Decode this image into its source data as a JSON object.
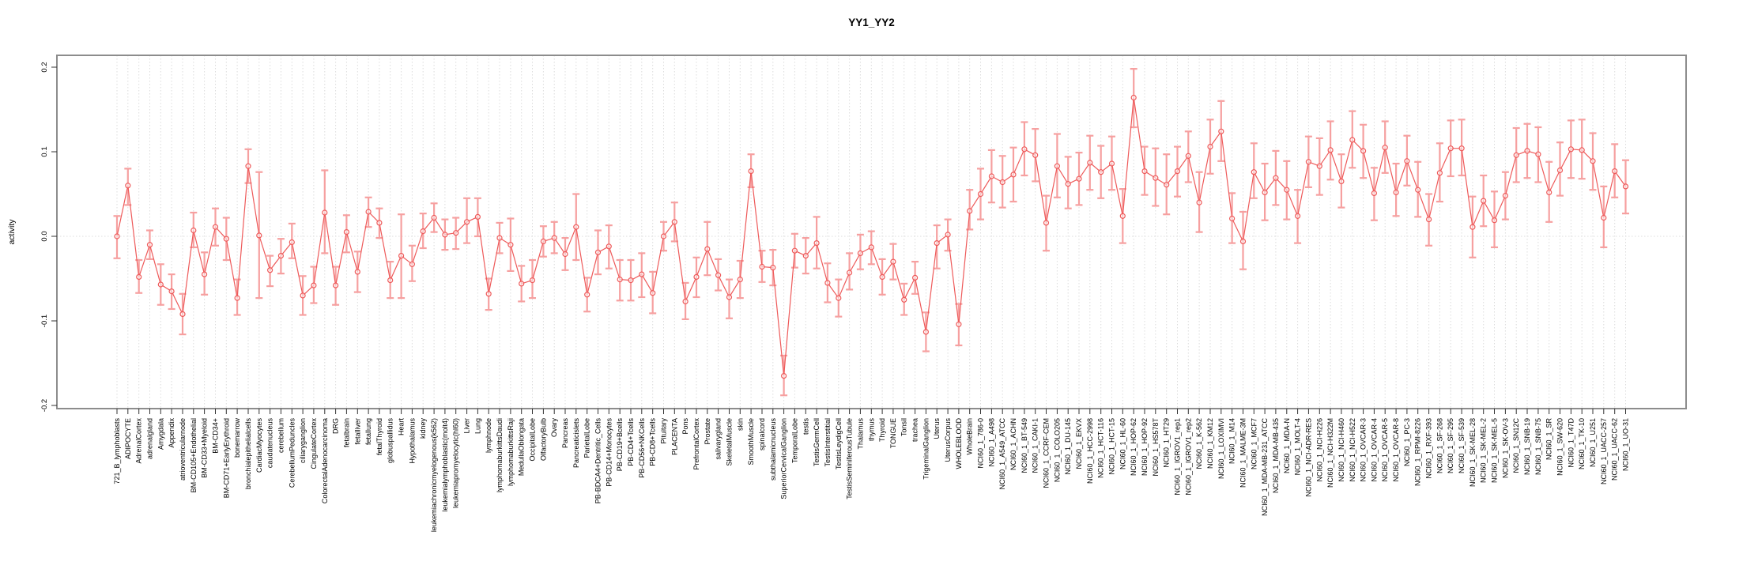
{
  "figure": {
    "title": "YY1_YY2",
    "background": "#ffffff"
  },
  "chart_data": {
    "type": "line",
    "title": "YY1_YY2",
    "xlabel": "",
    "ylabel": "activity",
    "ylim": [
      -0.21,
      0.215
    ],
    "y_ticks": [
      0.2,
      0.1,
      0.0,
      -0.1,
      -0.2
    ],
    "grid": "vertical dotted gridline per category; horizontal dotted line at 0",
    "legend": "none",
    "marker": "open-circle",
    "error_bars": true,
    "series_color": "#ee5a5a",
    "error_bar_color": "#f6a0a0",
    "grid_color": "#dcdcdc",
    "box_color": "#8c8c8c",
    "categories": [
      "721_B_lymphoblasts",
      "ADIPOCYTE",
      "AdrenalCortex",
      "adrenalgland",
      "Amygdala",
      "Appendix",
      "atrioventricularnode",
      "BM-CD105+Endothelial",
      "BM-CD33+Myeloid",
      "BM-CD34+",
      "BM-CD71+EarlyErythroid",
      "bonemarrow",
      "bronchialepithelialcells",
      "CardiacMyocytes",
      "caudatenucleus",
      "cerebellum",
      "CerebellumPeduncles",
      "ciliaryganglion",
      "CingulateCortex",
      "ColorectalAdenocarcinoma",
      "DRG",
      "fetalbrain",
      "fetalliver",
      "fetallung",
      "fetalThyroid",
      "globuspallidus",
      "Heart",
      "Hypothalamus",
      "kidney",
      "leukemiachronicmyelogenous(k562)",
      "leukemialymphoblastic(molt4)",
      "leukemiapromyelocytic(hl60)",
      "Liver",
      "Lung",
      "lymphnode",
      "lymphomaburkittsDaudi",
      "lymphomaburkittsRaji",
      "MedullaOblongata",
      "OccipitalLobe",
      "OlfactoryBulb",
      "Ovary",
      "Pancreas",
      "Pancreaticislets",
      "ParietalLobe",
      "PB-BDCA4+Dentritic_Cells",
      "PB-CD14+Monocytes",
      "PB-CD19+Bcells",
      "PB-CD4+Tcells",
      "PB-CD56+NKCells",
      "PB-CD8+Tcells",
      "Pituitary",
      "PLACENTA",
      "Pons",
      "PrefrontalCortex",
      "Prostate",
      "salivarygland",
      "SkeletalMuscle",
      "skin",
      "SmoothMuscle",
      "spinalcord",
      "subthalamicnucleus",
      "SuperiorCervicalGanglion",
      "TemporalLobe",
      "testis",
      "TestisGermCell",
      "TestisInterstitial",
      "TestisLeydigCell",
      "TestisSeminiferousTubule",
      "Thalamus",
      "thymus",
      "Thyroid",
      "TONGUE",
      "Tonsil",
      "trachea",
      "TrigeminalGanglion",
      "Uterus",
      "UterusCorpus",
      "WHOLEBLOOD",
      "WholeBrain",
      "NCI60_1_786-0",
      "NCI60_1_A498",
      "NCI60_1_A549_ATCC",
      "NCI60_1_ACHN",
      "NCI60_1_BT-549",
      "NCI60_1_CAKI-1",
      "NCI60_1_CCRF-CEM",
      "NCI60_1_COLO205",
      "NCI60_1_DU-145",
      "NCI60_1_EKVX",
      "NCI60_1_HCC-2998",
      "NCI60_1_HCT-116",
      "NCI60_1_HCT-15",
      "NCI60_1_HL-60",
      "NCI60_1_HOP-62",
      "NCI60_1_HOP-92",
      "NCI60_1_HS578T",
      "NCI60_1_HT29",
      "NCI60_1_IGROV1_rep1",
      "NCI60_1_IGROV1_rep2",
      "NCI60_1_K-562",
      "NCI60_1_KM12",
      "NCI60_1_LOXIMVI",
      "NCI60_1_M14",
      "NCI60_1_MALME-3M",
      "NCI60_1_MCF7",
      "NCI60_1_MDA-MB-231_ATCC",
      "NCI60_1_MDA-MB-435",
      "NCI60_1_MDA-N",
      "NCI60_1_MOLT-4",
      "NCI60_1_NCI-ADR-RES",
      "NCI60_1_NCI-H226",
      "NCI60_1_NCI-H322M",
      "NCI60_1_NCI-H460",
      "NCI60_1_NCI-H522",
      "NCI60_1_OVCAR-3",
      "NCI60_1_OVCAR-4",
      "NCI60_1_OVCAR-5",
      "NCI60_1_OVCAR-8",
      "NCI60_1_PC-3",
      "NCI60_1_RPMI-8226",
      "NCI60_1_RXF-393",
      "NCI60_1_SF-268",
      "NCI60_1_SF-295",
      "NCI60_1_SF-539",
      "NCI60_1_SK-MEL-28",
      "NCI60_1_SK-MEL-2",
      "NCI60_1_SK-MEL-5",
      "NCI60_1_SK-OV-3",
      "NCI60_1_SN12C",
      "NCI60_1_SNB-19",
      "NCI60_1_SNB-75",
      "NCI60_1_SR",
      "NCI60_1_SW-620",
      "NCI60_1_T47D",
      "NCI60_1_TK-10",
      "NCI60_1_U251",
      "NCI60_1_UACC-257",
      "NCI60_1_UACC-62",
      "NCI60_1_UO-31"
    ],
    "values": [
      0.0,
      0.06,
      -0.048,
      -0.01,
      -0.057,
      -0.065,
      -0.092,
      0.007,
      -0.045,
      0.011,
      -0.003,
      -0.073,
      0.083,
      0.001,
      -0.04,
      -0.023,
      -0.007,
      -0.07,
      -0.058,
      0.028,
      -0.058,
      0.005,
      -0.042,
      0.029,
      0.016,
      -0.052,
      -0.023,
      -0.033,
      0.006,
      0.022,
      0.002,
      0.004,
      0.017,
      0.023,
      -0.068,
      -0.002,
      -0.01,
      -0.056,
      -0.052,
      -0.006,
      -0.002,
      -0.021,
      0.011,
      -0.069,
      -0.019,
      -0.012,
      -0.051,
      -0.052,
      -0.045,
      -0.067,
      0.0,
      0.017,
      -0.077,
      -0.048,
      -0.015,
      -0.046,
      -0.072,
      -0.051,
      0.077,
      -0.036,
      -0.037,
      -0.165,
      -0.017,
      -0.023,
      -0.008,
      -0.055,
      -0.073,
      -0.043,
      -0.02,
      -0.013,
      -0.048,
      -0.03,
      -0.075,
      -0.049,
      -0.113,
      -0.008,
      0.002,
      -0.104,
      0.03,
      0.05,
      0.071,
      0.064,
      0.073,
      0.103,
      0.096,
      0.016,
      0.083,
      0.062,
      0.068,
      0.087,
      0.076,
      0.086,
      0.024,
      0.164,
      0.077,
      0.069,
      0.061,
      0.077,
      0.095,
      0.04,
      0.106,
      0.124,
      0.021,
      -0.006,
      0.076,
      0.052,
      0.069,
      0.055,
      0.024,
      0.088,
      0.083,
      0.102,
      0.065,
      0.114,
      0.101,
      0.051,
      0.105,
      0.052,
      0.089,
      0.055,
      0.02,
      0.075,
      0.104,
      0.104,
      0.011,
      0.042,
      0.019,
      0.048,
      0.096,
      0.101,
      0.097,
      0.052,
      0.078,
      0.103,
      0.102,
      0.089,
      0.022,
      0.077,
      0.059
    ],
    "error_high": [
      0.024,
      0.08,
      -0.028,
      0.007,
      -0.033,
      -0.045,
      -0.068,
      0.028,
      -0.019,
      0.033,
      0.022,
      -0.051,
      0.103,
      0.076,
      -0.023,
      -0.003,
      0.015,
      -0.047,
      -0.036,
      0.078,
      -0.036,
      0.025,
      -0.018,
      0.046,
      0.033,
      -0.03,
      0.026,
      -0.011,
      0.027,
      0.039,
      0.02,
      0.022,
      0.045,
      0.045,
      -0.05,
      0.016,
      0.021,
      -0.035,
      -0.028,
      0.012,
      0.017,
      -0.002,
      0.05,
      -0.049,
      0.007,
      0.013,
      -0.028,
      -0.028,
      -0.02,
      -0.042,
      0.017,
      0.04,
      -0.055,
      -0.025,
      0.017,
      -0.027,
      -0.051,
      -0.029,
      0.097,
      -0.017,
      -0.016,
      -0.141,
      0.003,
      -0.002,
      0.023,
      -0.032,
      -0.051,
      -0.02,
      0.002,
      0.006,
      -0.027,
      -0.009,
      -0.056,
      -0.03,
      -0.09,
      0.013,
      0.02,
      -0.08,
      0.055,
      0.08,
      0.102,
      0.095,
      0.105,
      0.135,
      0.127,
      0.048,
      0.121,
      0.094,
      0.099,
      0.119,
      0.107,
      0.118,
      0.056,
      0.198,
      0.106,
      0.104,
      0.097,
      0.106,
      0.124,
      0.076,
      0.138,
      0.16,
      0.051,
      0.029,
      0.11,
      0.086,
      0.101,
      0.089,
      0.055,
      0.118,
      0.116,
      0.136,
      0.097,
      0.148,
      0.132,
      0.081,
      0.136,
      0.086,
      0.119,
      0.088,
      0.05,
      0.11,
      0.137,
      0.138,
      0.047,
      0.072,
      0.053,
      0.076,
      0.128,
      0.133,
      0.129,
      0.088,
      0.111,
      0.137,
      0.138,
      0.122,
      0.059,
      0.109,
      0.09
    ],
    "error_low": [
      -0.026,
      0.037,
      -0.067,
      -0.027,
      -0.081,
      -0.086,
      -0.116,
      -0.013,
      -0.069,
      -0.011,
      -0.028,
      -0.093,
      0.063,
      -0.073,
      -0.059,
      -0.044,
      -0.026,
      -0.093,
      -0.079,
      -0.02,
      -0.081,
      -0.019,
      -0.066,
      0.011,
      -0.002,
      -0.073,
      -0.073,
      -0.053,
      -0.014,
      0.005,
      -0.016,
      -0.015,
      -0.008,
      0.0,
      -0.087,
      -0.02,
      -0.041,
      -0.077,
      -0.073,
      -0.024,
      -0.02,
      -0.04,
      -0.028,
      -0.089,
      -0.045,
      -0.038,
      -0.076,
      -0.076,
      -0.072,
      -0.091,
      -0.017,
      -0.006,
      -0.098,
      -0.072,
      -0.046,
      -0.064,
      -0.097,
      -0.073,
      0.058,
      -0.054,
      -0.058,
      -0.188,
      -0.037,
      -0.044,
      -0.038,
      -0.078,
      -0.095,
      -0.063,
      -0.039,
      -0.033,
      -0.069,
      -0.051,
      -0.093,
      -0.068,
      -0.136,
      -0.038,
      -0.017,
      -0.129,
      0.008,
      0.02,
      0.04,
      0.034,
      0.041,
      0.072,
      0.065,
      -0.017,
      0.046,
      0.033,
      0.037,
      0.055,
      0.045,
      0.055,
      -0.008,
      0.129,
      0.049,
      0.036,
      0.026,
      0.047,
      0.064,
      0.005,
      0.074,
      0.089,
      -0.008,
      -0.039,
      0.045,
      0.019,
      0.037,
      0.02,
      -0.008,
      0.058,
      0.049,
      0.067,
      0.034,
      0.081,
      0.069,
      0.019,
      0.075,
      0.024,
      0.06,
      0.023,
      -0.011,
      0.041,
      0.071,
      0.072,
      -0.025,
      0.012,
      -0.013,
      0.02,
      0.064,
      0.069,
      0.064,
      0.017,
      0.048,
      0.069,
      0.068,
      0.055,
      -0.013,
      0.046,
      0.027
    ]
  }
}
